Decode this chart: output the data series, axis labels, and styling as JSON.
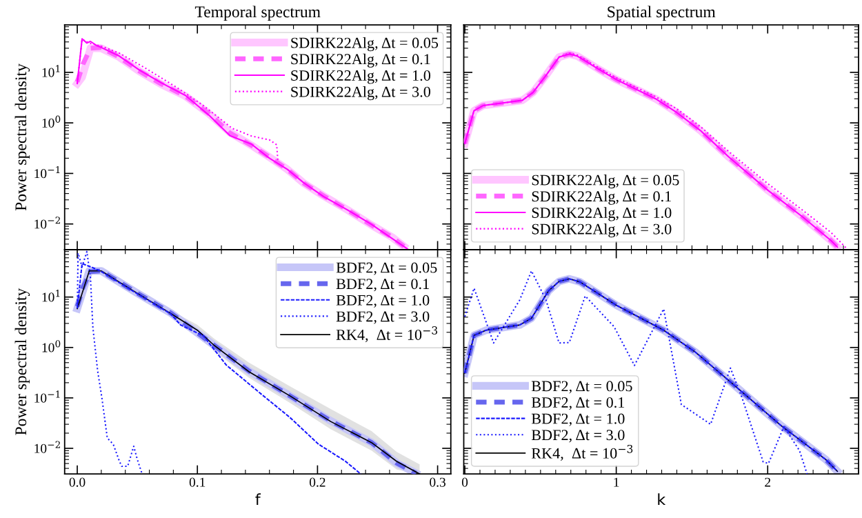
{
  "chart_data": [
    {
      "type": "line",
      "title": "Temporal spectrum",
      "ylabel": "Power spectral density",
      "log": true,
      "legend": "top right",
      "tick_labels": "y",
      "xlim": [
        -0.0105,
        0.311
      ],
      "xticks": [
        {
          "value": 0,
          "label": null
        },
        {
          "value": 0.1,
          "label": null
        },
        {
          "value": 0.2,
          "label": null
        },
        {
          "value": 0.3,
          "label": null
        }
      ],
      "ylim": [
        0.0031,
        87
      ],
      "yticks": [
        {
          "value": 0.01,
          "label": "10$^{−2}$"
        },
        {
          "value": 0.1,
          "label": "10$^{−1}$"
        },
        {
          "value": 1,
          "label": "10$^{0}$"
        },
        {
          "value": 10,
          "label": "10$^{1}$"
        }
      ],
      "series": [
        {
          "name": "SDIRK22Alg, Δt = 0.05",
          "color": "#ffc6ff",
          "line_style": "solid",
          "x": [
            0,
            0.004,
            0.011,
            0.02,
            0.035,
            0.052,
            0.07,
            0.09,
            0.11,
            0.127,
            0.145,
            0.16,
            0.175,
            0.189,
            0.205,
            0.225,
            0.245,
            0.262,
            0.272
          ],
          "values": [
            6.0,
            8,
            30,
            30,
            20,
            10.4,
            5.8,
            3.4,
            1.5,
            0.65,
            0.36,
            0.21,
            0.12,
            0.063,
            0.036,
            0.019,
            0.0095,
            0.0055,
            0.0036
          ]
        },
        {
          "name": "SDIRK22Alg, Δt = 0.1",
          "color": "#ff66ff",
          "line_style": "dashed",
          "x": [
            0,
            0.005,
            0.011,
            0.02,
            0.035,
            0.052,
            0.07,
            0.09,
            0.11,
            0.127,
            0.145,
            0.16,
            0.175,
            0.189,
            0.205,
            0.225,
            0.245,
            0.262,
            0.272
          ],
          "values": [
            6.5,
            15,
            30,
            31,
            20,
            10.5,
            5.9,
            3.4,
            1.5,
            0.63,
            0.36,
            0.21,
            0.12,
            0.063,
            0.036,
            0.019,
            0.0095,
            0.0055,
            0.0036
          ]
        },
        {
          "name": "SDIRK22Alg, Δt = 1.0",
          "color": "#ff00ff",
          "line_style": "solid",
          "x": [
            0,
            0.004,
            0.008,
            0.011,
            0.016,
            0.02,
            0.035,
            0.052,
            0.07,
            0.09,
            0.11,
            0.127,
            0.145,
            0.16,
            0.175,
            0.189,
            0.205,
            0.225,
            0.245,
            0.262,
            0.275
          ],
          "values": [
            6,
            46,
            38,
            41,
            34,
            31,
            21,
            11,
            6.2,
            3.5,
            1.4,
            0.56,
            0.38,
            0.2,
            0.12,
            0.064,
            0.035,
            0.019,
            0.0098,
            0.0052,
            0.0032
          ]
        },
        {
          "name": "SDIRK22Alg, Δt = 3.0",
          "color": "#ff00ff",
          "line_style": "dotted",
          "x": [
            0,
            0.004,
            0.01,
            0.02,
            0.035,
            0.057,
            0.083,
            0.105,
            0.129,
            0.145,
            0.16,
            0.166,
            0.167
          ],
          "values": [
            6,
            45,
            38,
            33,
            24,
            12,
            5.0,
            2.2,
            0.78,
            0.55,
            0.46,
            0.37,
            0.18
          ]
        }
      ]
    },
    {
      "type": "line",
      "title": "Spatial spectrum",
      "log": true,
      "legend": "bottom left",
      "tick_labels": false,
      "xlim": [
        -0.007,
        2.6
      ],
      "xticks": [
        {
          "value": 0,
          "label": null
        },
        {
          "value": 1,
          "label": null
        },
        {
          "value": 2,
          "label": null
        }
      ],
      "ylim": [
        0.0031,
        87
      ],
      "yticks": [
        {
          "value": 0.01,
          "label": null
        },
        {
          "value": 0.1,
          "label": null
        },
        {
          "value": 1,
          "label": null
        },
        {
          "value": 10,
          "label": null
        }
      ],
      "series": [
        {
          "name": "SDIRK22Alg, Δt = 0.05",
          "color": "#ffc6ff",
          "line_style": "solid",
          "x": [
            0,
            0.06,
            0.12,
            0.26,
            0.38,
            0.45,
            0.536,
            0.622,
            0.69,
            0.743,
            0.88,
            1.0,
            1.26,
            1.4,
            1.555,
            1.744,
            2.003,
            2.228,
            2.418,
            2.46
          ],
          "values": [
            0.39,
            1.73,
            2.2,
            2.5,
            2.8,
            4.0,
            8.7,
            20,
            23,
            21,
            11.7,
            7.2,
            3.0,
            1.6,
            0.71,
            0.21,
            0.046,
            0.014,
            0.0047,
            0.0035
          ]
        },
        {
          "name": "SDIRK22Alg, Δt = 0.1",
          "color": "#ff66ff",
          "line_style": "dashed",
          "x": [
            0,
            0.06,
            0.12,
            0.26,
            0.38,
            0.45,
            0.536,
            0.622,
            0.69,
            0.743,
            0.88,
            1.0,
            1.26,
            1.4,
            1.555,
            1.744,
            2.003,
            2.228,
            2.418,
            2.46
          ],
          "values": [
            0.39,
            1.73,
            2.2,
            2.5,
            2.8,
            4.0,
            8.7,
            20,
            23,
            21,
            11.7,
            7.2,
            3.0,
            1.6,
            0.71,
            0.21,
            0.046,
            0.014,
            0.0047,
            0.0035
          ]
        },
        {
          "name": "SDIRK22Alg, Δt = 1.0",
          "color": "#ff00ff",
          "line_style": "solid",
          "x": [
            0,
            0.06,
            0.12,
            0.26,
            0.38,
            0.45,
            0.536,
            0.622,
            0.69,
            0.743,
            0.88,
            1.0,
            1.26,
            1.4,
            1.555,
            1.744,
            2.003,
            2.228,
            2.418,
            2.46
          ],
          "values": [
            0.39,
            1.73,
            2.2,
            2.5,
            2.8,
            4.0,
            8.7,
            20,
            23,
            21,
            11.7,
            7.2,
            3.0,
            1.6,
            0.71,
            0.21,
            0.046,
            0.014,
            0.0047,
            0.0035
          ]
        },
        {
          "name": "SDIRK22Alg, Δt = 3.0",
          "color": "#ff00ff",
          "line_style": "dotted",
          "x": [
            0,
            0.06,
            0.12,
            0.26,
            0.38,
            0.45,
            0.536,
            0.622,
            0.69,
            0.743,
            0.88,
            1.0,
            1.26,
            1.4,
            1.555,
            1.744,
            2.003,
            2.228,
            2.418,
            2.52
          ],
          "values": [
            0.39,
            1.73,
            2.2,
            2.5,
            2.8,
            4.0,
            8.7,
            20,
            24,
            22,
            12.5,
            7.8,
            3.3,
            1.9,
            0.85,
            0.27,
            0.062,
            0.019,
            0.0068,
            0.0033
          ]
        }
      ]
    },
    {
      "type": "line",
      "ylabel": "Power spectral density",
      "xlabel": "f",
      "log": true,
      "legend": "top right",
      "xlim": [
        -0.0105,
        0.311
      ],
      "xticks": [
        {
          "value": 0,
          "label": "0.0"
        },
        0.1,
        0.2,
        0.3
      ],
      "ylim": [
        0.0031,
        87
      ],
      "yticks": [
        {
          "value": 0.01,
          "label": "10$^{−2}$"
        },
        {
          "value": 0.1,
          "label": "10$^{−1}$"
        },
        {
          "value": 1,
          "label": "10$^{0}$"
        },
        {
          "value": 10,
          "label": "10$^{1}$"
        }
      ],
      "series": [
        {
          "name": "BDF2, Δt = 0.05",
          "color": "#c6c6f8",
          "line_style": "solid",
          "x": [
            0,
            0.01,
            0.02,
            0.049,
            0.078,
            0.114,
            0.143,
            0.177,
            0.211,
            0.245,
            0.266,
            0.282
          ],
          "values": [
            5.9,
            33,
            33,
            12.3,
            4.8,
            1.1,
            0.34,
            0.11,
            0.035,
            0.013,
            0.0051,
            0.0032
          ]
        },
        {
          "name": "BDF2, Δt = 0.1",
          "color": "#6666ee",
          "line_style": "dashed",
          "x": [
            0,
            0.005,
            0.011,
            0.02,
            0.049,
            0.078,
            0.114,
            0.143,
            0.177,
            0.211,
            0.245,
            0.266,
            0.282
          ],
          "values": [
            6.5,
            16,
            32,
            33,
            12.3,
            4.8,
            1.1,
            0.34,
            0.11,
            0.035,
            0.013,
            0.0051,
            0.0032
          ]
        },
        {
          "name": "BDF2, Δt = 1.0",
          "color": "#1a1aff",
          "line_style": "dashed",
          "x": [
            0,
            0.004,
            0.011,
            0.02,
            0.049,
            0.078,
            0.086,
            0.105,
            0.124,
            0.153,
            0.177,
            0.201,
            0.223,
            0.236
          ],
          "values": [
            6,
            46,
            40,
            32,
            12,
            4.6,
            2.8,
            1.7,
            0.45,
            0.12,
            0.041,
            0.012,
            0.0056,
            0.0031
          ]
        },
        {
          "name": "BDF2, Δt = 3.0",
          "color": "#1a1aff",
          "line_style": "dotted",
          "x": [
            0,
            0.0007,
            0.004,
            0.008,
            0.011,
            0.013,
            0.017,
            0.0205,
            0.025,
            0.03,
            0.035,
            0.037,
            0.042,
            0.047,
            0.05,
            0.054
          ],
          "values": [
            6,
            74,
            40,
            80,
            24,
            2.5,
            0.34,
            0.1,
            0.016,
            0.012,
            0.0056,
            0.0044,
            0.0044,
            0.011,
            0.006,
            0.0031
          ]
        },
        {
          "name": "RK4,  Δt = 10$^{−3}$",
          "color": "#000000",
          "line_style": "solid",
          "x": [
            0,
            0.01,
            0.02,
            0.049,
            0.078,
            0.1,
            0.114,
            0.143,
            0.177,
            0.211,
            0.245,
            0.266,
            0.285
          ],
          "values": [
            5.9,
            33,
            33,
            12.3,
            4.7,
            2.2,
            1.1,
            0.33,
            0.11,
            0.034,
            0.013,
            0.0055,
            0.0031
          ],
          "lower": [
            5.5,
            31,
            31,
            11,
            4.2,
            1.8,
            0.85,
            0.25,
            0.08,
            0.024,
            0.009,
            0.0038,
            0.0031
          ],
          "upper": [
            6.5,
            36,
            36,
            14,
            5.4,
            2.8,
            1.5,
            0.5,
            0.17,
            0.06,
            0.022,
            0.0085,
            0.0048
          ]
        }
      ]
    },
    {
      "type": "line",
      "xlabel": "k",
      "log": true,
      "legend": "bottom left",
      "tick_labels": "x",
      "xlim": [
        -0.007,
        2.6
      ],
      "xticks": [
        0,
        1,
        2
      ],
      "ylim": [
        0.0031,
        87
      ],
      "yticks": [
        {
          "value": 0.01,
          "label": null
        },
        {
          "value": 0.1,
          "label": null
        },
        {
          "value": 1,
          "label": null
        },
        {
          "value": 10,
          "label": null
        }
      ],
      "series": [
        {
          "name": "BDF2, Δt = 0.05",
          "color": "#c6c6f8",
          "line_style": "solid",
          "x": [
            0,
            0.061,
            0.14,
            0.363,
            0.44,
            0.553,
            0.622,
            0.69,
            0.76,
            1.0,
            1.313,
            1.52,
            1.744,
            2.09,
            2.383,
            2.46
          ],
          "values": [
            0.31,
            1.74,
            2.2,
            2.8,
            3.8,
            13.3,
            20.4,
            23,
            20,
            6.9,
            2.2,
            0.82,
            0.22,
            0.028,
            0.006,
            0.0035
          ]
        },
        {
          "name": "BDF2, Δt = 0.1",
          "color": "#6666ee",
          "line_style": "dashed",
          "x": [
            0,
            0.061,
            0.14,
            0.363,
            0.44,
            0.553,
            0.622,
            0.69,
            0.76,
            1.0,
            1.313,
            1.52,
            1.744,
            2.09,
            2.383,
            2.46
          ],
          "values": [
            0.31,
            1.74,
            2.2,
            2.8,
            3.8,
            13.3,
            20.4,
            23,
            20,
            6.9,
            2.2,
            0.82,
            0.22,
            0.028,
            0.006,
            0.0035
          ]
        },
        {
          "name": "BDF2, Δt = 1.0",
          "color": "#1a1aff",
          "line_style": "dashed",
          "x": [
            0,
            0.061,
            0.14,
            0.363,
            0.44,
            0.553,
            0.622,
            0.69,
            0.76,
            1.0,
            1.313,
            1.52,
            1.744,
            2.09,
            2.383,
            2.46
          ],
          "values": [
            0.31,
            1.74,
            2.2,
            2.8,
            3.8,
            13.3,
            20.4,
            23,
            20,
            6.9,
            2.2,
            0.82,
            0.22,
            0.028,
            0.006,
            0.0035
          ]
        },
        {
          "name": "BDF2, Δt = 3.0",
          "color": "#1a1aff",
          "line_style": "dotted",
          "x": [
            0,
            0.061,
            0.19,
            0.363,
            0.44,
            0.536,
            0.622,
            0.69,
            0.795,
            0.985,
            1.12,
            1.313,
            1.43,
            1.623,
            1.754,
            1.831,
            1.97,
            2.005,
            2.107,
            2.21,
            2.26
          ],
          "values": [
            4.1,
            15,
            1.23,
            8.8,
            33,
            8.8,
            1.23,
            1.25,
            10.5,
            2.6,
            0.44,
            5.8,
            0.074,
            0.03,
            0.39,
            0.1,
            0.0054,
            0.005,
            0.027,
            0.009,
            0.0031
          ]
        },
        {
          "name": "RK4,  Δt = 10$^{−3}$",
          "color": "#000000",
          "line_style": "solid",
          "x": [
            0,
            0.061,
            0.14,
            0.363,
            0.44,
            0.553,
            0.622,
            0.69,
            0.76,
            1.0,
            1.313,
            1.52,
            1.744,
            2.09,
            2.383,
            2.46
          ],
          "values": [
            0.31,
            1.74,
            2.2,
            2.8,
            3.8,
            13.3,
            20.4,
            23,
            20,
            6.9,
            2.2,
            0.82,
            0.22,
            0.028,
            0.006,
            0.0035
          ]
        }
      ]
    }
  ]
}
